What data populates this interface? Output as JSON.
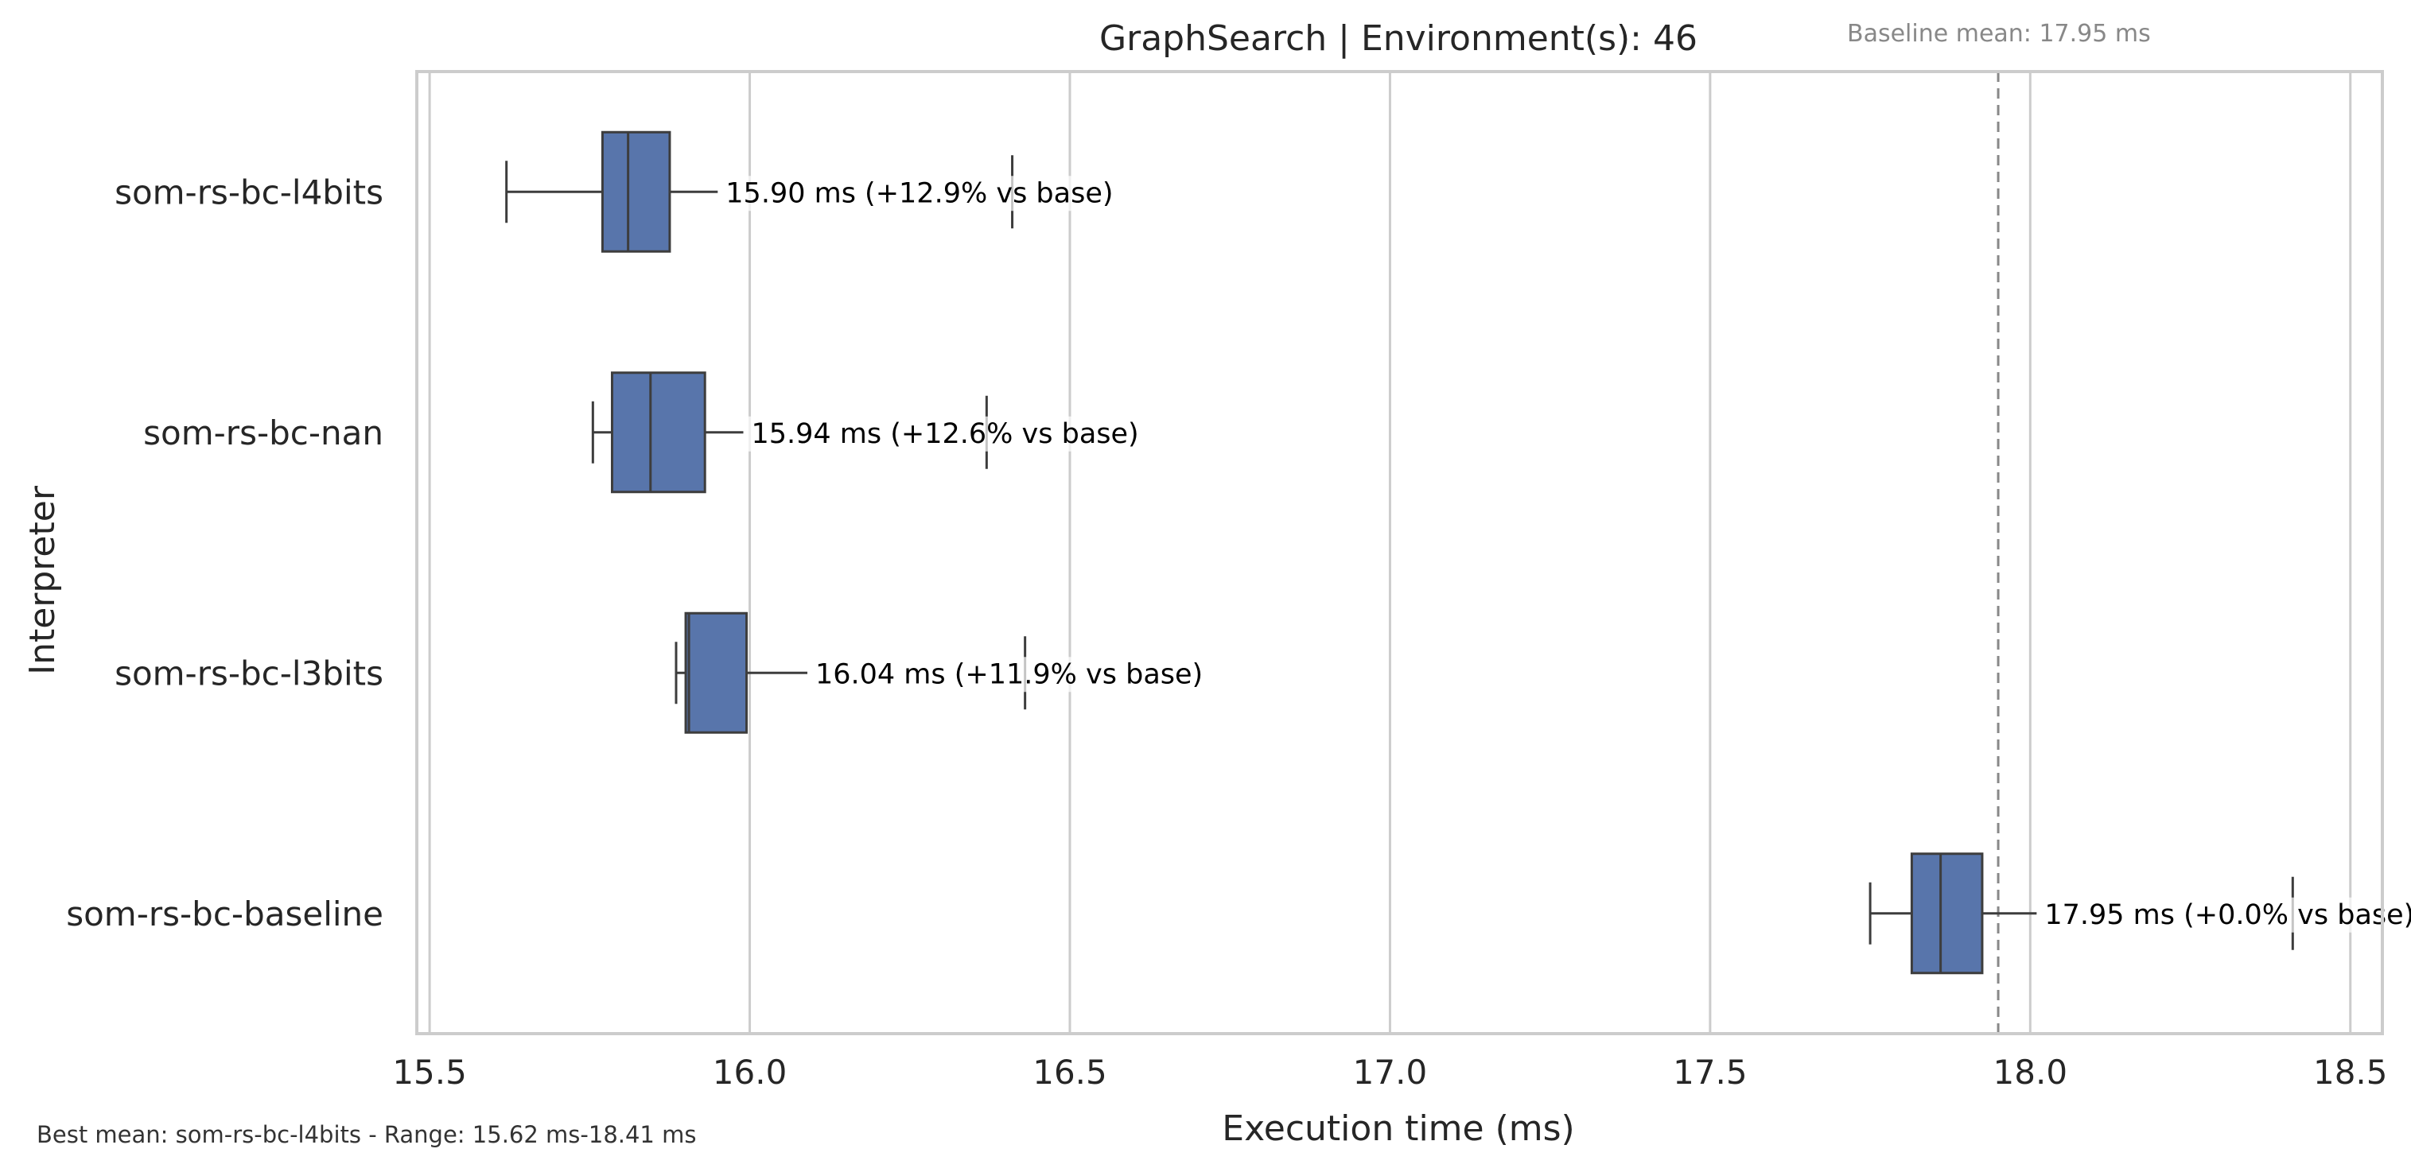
{
  "chart_data": {
    "type": "box",
    "orientation": "horizontal",
    "title": "GraphSearch | Environment(s): 46",
    "xlabel": "Execution time (ms)",
    "ylabel": "Interpreter",
    "xlim": [
      15.48,
      18.55
    ],
    "xticks": [
      {
        "value": 15.5,
        "label": "15.5"
      },
      {
        "value": 16.0,
        "label": "16.0"
      },
      {
        "value": 16.5,
        "label": "16.5"
      },
      {
        "value": 17.0,
        "label": "17.0"
      },
      {
        "value": 17.5,
        "label": "17.5"
      },
      {
        "value": 18.0,
        "label": "18.0"
      },
      {
        "value": 18.5,
        "label": "18.5"
      }
    ],
    "grid": "vertical",
    "box_color": "#5875ab",
    "baseline": {
      "value": 17.95,
      "label": "Baseline mean: 17.95 ms",
      "color": "#888888"
    },
    "footer": "Best mean: som-rs-bc-l4bits - Range: 15.62 ms-18.41 ms",
    "series": [
      {
        "name": "som-rs-bc-l4bits",
        "whisker_low": 15.62,
        "q1": 15.77,
        "median": 15.81,
        "q3": 15.875,
        "whisker_high": 15.95,
        "outliers": [
          16.41
        ],
        "annotation": "15.90 ms  (+12.9% vs base)"
      },
      {
        "name": "som-rs-bc-nan",
        "whisker_low": 15.755,
        "q1": 15.785,
        "median": 15.845,
        "q3": 15.93,
        "whisker_high": 15.99,
        "outliers": [
          16.37
        ],
        "annotation": "15.94 ms  (+12.6% vs base)"
      },
      {
        "name": "som-rs-bc-l3bits",
        "whisker_low": 15.885,
        "q1": 15.9,
        "median": 15.905,
        "q3": 15.995,
        "whisker_high": 16.09,
        "outliers": [
          16.43
        ],
        "annotation": "16.04 ms  (+11.9% vs base)"
      },
      {
        "name": "som-rs-bc-baseline",
        "whisker_low": 17.75,
        "q1": 17.815,
        "median": 17.86,
        "q3": 17.925,
        "whisker_high": 18.01,
        "outliers": [
          18.41
        ],
        "annotation": "17.95 ms  (+0.0% vs base)"
      }
    ]
  }
}
